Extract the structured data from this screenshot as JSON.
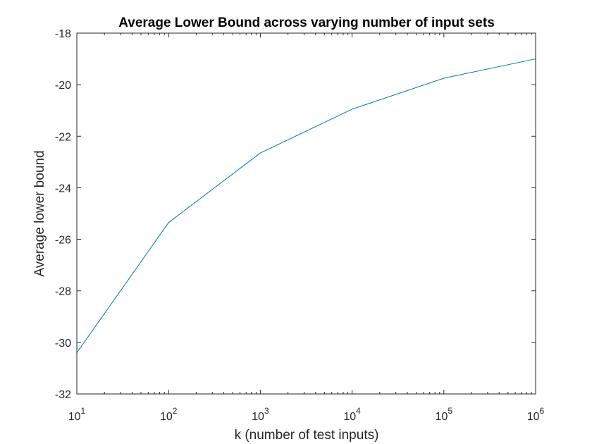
{
  "chart_data": {
    "type": "line",
    "title": "Average Lower Bound across varying number of input sets",
    "xlabel": "k (number of test inputs)",
    "ylabel": "Average lower bound",
    "x_scale": "log",
    "xlim": [
      10,
      1000000
    ],
    "ylim": [
      -32,
      -18
    ],
    "x_ticks": [
      {
        "base": "10",
        "exp": "1",
        "value": 10
      },
      {
        "base": "10",
        "exp": "2",
        "value": 100
      },
      {
        "base": "10",
        "exp": "3",
        "value": 1000
      },
      {
        "base": "10",
        "exp": "4",
        "value": 10000
      },
      {
        "base": "10",
        "exp": "5",
        "value": 100000
      },
      {
        "base": "10",
        "exp": "6",
        "value": 1000000
      }
    ],
    "y_ticks": [
      -32,
      -30,
      -28,
      -26,
      -24,
      -22,
      -20,
      -18
    ],
    "y_tick_labels": [
      "-32",
      "-30",
      "-28",
      "-26",
      "-24",
      "-22",
      "-20",
      "-18"
    ],
    "grid": false,
    "line_color": "#0072BD",
    "series": [
      {
        "x": [
          10,
          100,
          1000,
          10000,
          100000,
          1000000
        ],
        "y": [
          -30.4,
          -25.35,
          -22.65,
          -20.95,
          -19.75,
          -19.0
        ]
      }
    ]
  }
}
